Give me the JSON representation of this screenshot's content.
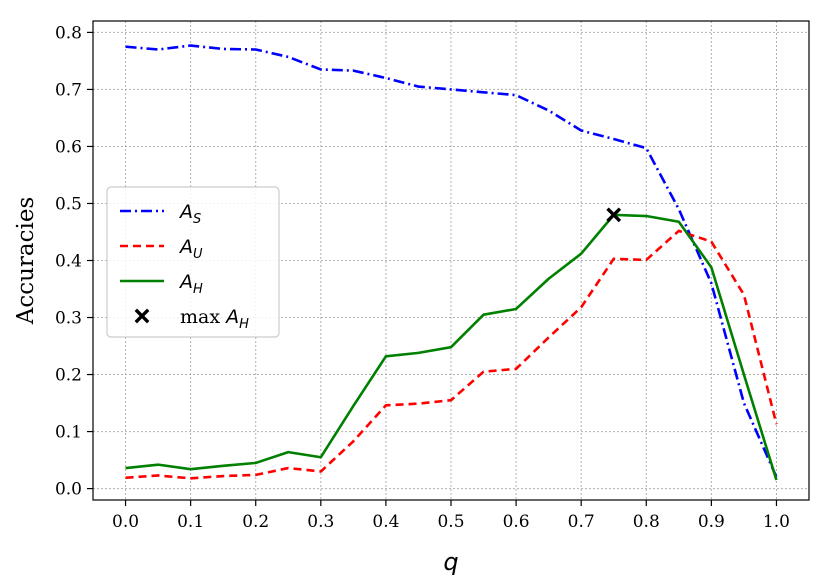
{
  "chart_data": {
    "type": "line",
    "xlabel": "q",
    "ylabel": "Accuracies",
    "xlim": [
      -0.05,
      1.05
    ],
    "ylim": [
      -0.02,
      0.82
    ],
    "xticks": [
      0.0,
      0.1,
      0.2,
      0.3,
      0.4,
      0.5,
      0.6,
      0.7,
      0.8,
      0.9,
      1.0
    ],
    "xtick_labels": [
      "0.0",
      "0.1",
      "0.2",
      "0.3",
      "0.4",
      "0.5",
      "0.6",
      "0.7",
      "0.8",
      "0.9",
      "1.0"
    ],
    "yticks": [
      0.0,
      0.1,
      0.2,
      0.3,
      0.4,
      0.5,
      0.6,
      0.7,
      0.8
    ],
    "ytick_labels": [
      "0.0",
      "0.1",
      "0.2",
      "0.3",
      "0.4",
      "0.5",
      "0.6",
      "0.7",
      "0.8"
    ],
    "grid": true,
    "legend_position": "center-left",
    "x": [
      0.0,
      0.05,
      0.1,
      0.15,
      0.2,
      0.25,
      0.3,
      0.35,
      0.4,
      0.45,
      0.5,
      0.55,
      0.6,
      0.65,
      0.7,
      0.75,
      0.8,
      0.85,
      0.9,
      0.95,
      1.0
    ],
    "series": [
      {
        "name": "A_S",
        "label_main": "A",
        "label_sub": "S",
        "color": "#0000ff",
        "style": "dashdot",
        "values": [
          0.775,
          0.77,
          0.777,
          0.771,
          0.77,
          0.757,
          0.735,
          0.733,
          0.72,
          0.705,
          0.7,
          0.695,
          0.69,
          0.663,
          0.628,
          0.613,
          0.597,
          0.49,
          0.36,
          0.15,
          0.02
        ]
      },
      {
        "name": "A_U",
        "label_main": "A",
        "label_sub": "U",
        "color": "#ff0000",
        "style": "dashed",
        "values": [
          0.019,
          0.023,
          0.018,
          0.022,
          0.024,
          0.036,
          0.03,
          0.083,
          0.146,
          0.149,
          0.155,
          0.205,
          0.21,
          0.265,
          0.318,
          0.403,
          0.401,
          0.452,
          0.433,
          0.34,
          0.113
        ]
      },
      {
        "name": "A_H",
        "label_main": "A",
        "label_sub": "H",
        "color": "#008000",
        "style": "solid",
        "values": [
          0.036,
          0.042,
          0.034,
          0.04,
          0.045,
          0.064,
          0.055,
          0.145,
          0.232,
          0.238,
          0.248,
          0.305,
          0.315,
          0.368,
          0.412,
          0.48,
          0.478,
          0.468,
          0.388,
          0.2,
          0.015
        ]
      }
    ],
    "markers": [
      {
        "name": "max A_H",
        "label_prefix": "max ",
        "label_main": "A",
        "label_sub": "H",
        "x": 0.75,
        "y": 0.48,
        "symbol": "x",
        "color": "#000000"
      }
    ]
  }
}
